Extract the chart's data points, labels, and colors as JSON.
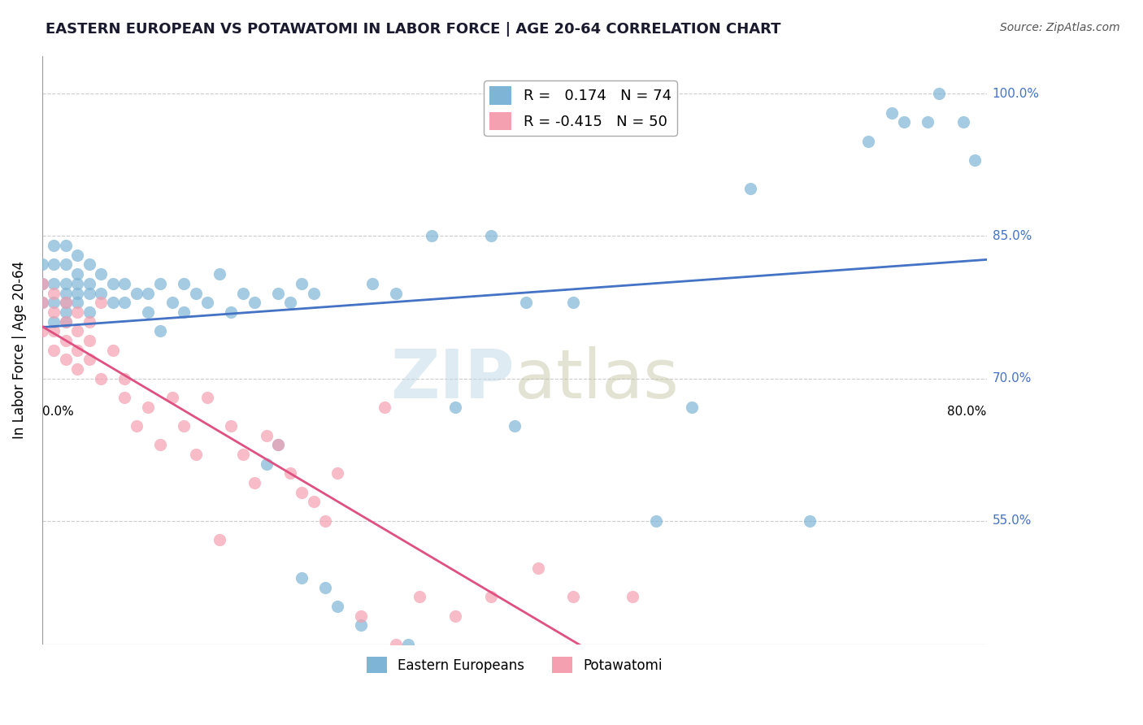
{
  "title": "EASTERN EUROPEAN VS POTAWATOMI IN LABOR FORCE | AGE 20-64 CORRELATION CHART",
  "source": "Source: ZipAtlas.com",
  "xlabel_bottom_left": "0.0%",
  "xlabel_bottom_right": "80.0%",
  "ylabel": "In Labor Force | Age 20-64",
  "ytick_labels": [
    "55.0%",
    "70.0%",
    "85.0%",
    "100.0%"
  ],
  "ytick_values": [
    0.55,
    0.7,
    0.85,
    1.0
  ],
  "xlim": [
    0.0,
    0.8
  ],
  "ylim": [
    0.42,
    1.04
  ],
  "r_eastern": 0.174,
  "n_eastern": 74,
  "r_potawatomi": -0.415,
  "n_potawatomi": 50,
  "legend_label_eastern": "Eastern Europeans",
  "legend_label_potawatomi": "Potawatomi",
  "color_eastern": "#7EB5D6",
  "color_potawatomi": "#F4A0B0",
  "color_eastern_line": "#4472C4",
  "color_potawatomi_line": "#E05080",
  "color_eastern_legend_box": "#7EB5D6",
  "color_potawatomi_legend_box": "#F4A0B0",
  "watermark": "ZIPatlas",
  "background_color": "#FFFFFF",
  "grid_color": "#CCCCCC",
  "eastern_x": [
    0.0,
    0.0,
    0.0,
    0.01,
    0.01,
    0.01,
    0.01,
    0.01,
    0.02,
    0.02,
    0.02,
    0.02,
    0.02,
    0.02,
    0.02,
    0.03,
    0.03,
    0.03,
    0.03,
    0.03,
    0.04,
    0.04,
    0.04,
    0.04,
    0.05,
    0.05,
    0.06,
    0.06,
    0.07,
    0.07,
    0.08,
    0.09,
    0.09,
    0.1,
    0.1,
    0.11,
    0.12,
    0.12,
    0.13,
    0.14,
    0.15,
    0.16,
    0.17,
    0.18,
    0.19,
    0.2,
    0.2,
    0.21,
    0.22,
    0.22,
    0.23,
    0.24,
    0.25,
    0.27,
    0.28,
    0.3,
    0.31,
    0.33,
    0.35,
    0.38,
    0.4,
    0.41,
    0.45,
    0.52,
    0.55,
    0.6,
    0.65,
    0.7,
    0.72,
    0.73,
    0.75,
    0.76,
    0.78,
    0.79
  ],
  "eastern_y": [
    0.8,
    0.78,
    0.82,
    0.84,
    0.82,
    0.8,
    0.78,
    0.76,
    0.84,
    0.82,
    0.8,
    0.79,
    0.78,
    0.77,
    0.76,
    0.83,
    0.81,
    0.8,
    0.79,
    0.78,
    0.82,
    0.8,
    0.79,
    0.77,
    0.81,
    0.79,
    0.8,
    0.78,
    0.8,
    0.78,
    0.79,
    0.79,
    0.77,
    0.8,
    0.75,
    0.78,
    0.8,
    0.77,
    0.79,
    0.78,
    0.81,
    0.77,
    0.79,
    0.78,
    0.61,
    0.63,
    0.79,
    0.78,
    0.8,
    0.49,
    0.79,
    0.48,
    0.46,
    0.44,
    0.8,
    0.79,
    0.42,
    0.85,
    0.67,
    0.85,
    0.65,
    0.78,
    0.78,
    0.55,
    0.67,
    0.9,
    0.55,
    0.95,
    0.98,
    0.97,
    0.97,
    1.0,
    0.97,
    0.93
  ],
  "potawatomi_x": [
    0.0,
    0.0,
    0.0,
    0.01,
    0.01,
    0.01,
    0.01,
    0.02,
    0.02,
    0.02,
    0.02,
    0.03,
    0.03,
    0.03,
    0.03,
    0.04,
    0.04,
    0.04,
    0.05,
    0.05,
    0.06,
    0.07,
    0.07,
    0.08,
    0.09,
    0.1,
    0.11,
    0.12,
    0.13,
    0.14,
    0.15,
    0.16,
    0.17,
    0.18,
    0.19,
    0.2,
    0.21,
    0.22,
    0.23,
    0.24,
    0.25,
    0.27,
    0.29,
    0.3,
    0.32,
    0.35,
    0.38,
    0.42,
    0.45,
    0.5
  ],
  "potawatomi_y": [
    0.78,
    0.8,
    0.75,
    0.79,
    0.77,
    0.75,
    0.73,
    0.78,
    0.76,
    0.74,
    0.72,
    0.77,
    0.75,
    0.73,
    0.71,
    0.76,
    0.74,
    0.72,
    0.78,
    0.7,
    0.73,
    0.7,
    0.68,
    0.65,
    0.67,
    0.63,
    0.68,
    0.65,
    0.62,
    0.68,
    0.53,
    0.65,
    0.62,
    0.59,
    0.64,
    0.63,
    0.6,
    0.58,
    0.57,
    0.55,
    0.6,
    0.45,
    0.67,
    0.42,
    0.47,
    0.45,
    0.47,
    0.5,
    0.47,
    0.47
  ]
}
